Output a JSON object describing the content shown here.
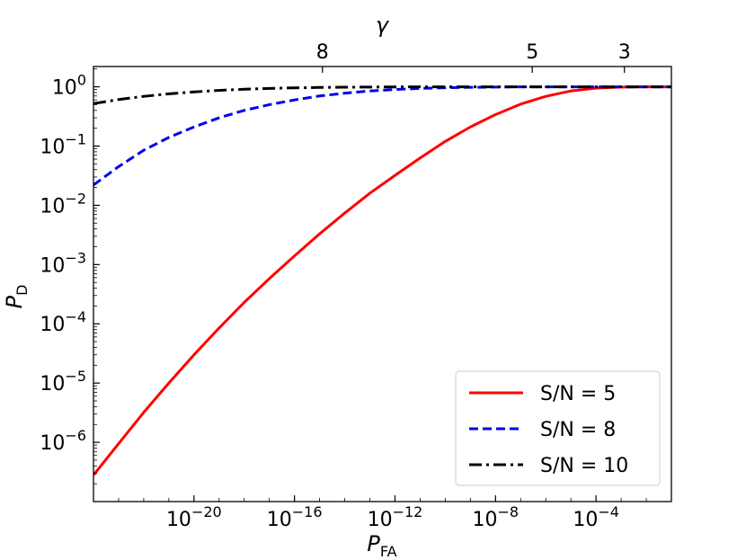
{
  "chart_data": {
    "type": "line",
    "title": "",
    "xlabel": "P_FA",
    "xlabel_main": "P",
    "xlabel_sub": "FA",
    "ylabel": "P_D",
    "ylabel_main": "P",
    "ylabel_sub": "D",
    "top_axis_label": "γ",
    "x_scale": "log",
    "y_scale": "log",
    "xlim": [
      1e-24,
      0.1
    ],
    "ylim": [
      1e-07,
      2.2
    ],
    "grid": false,
    "legend_position": "lower-right",
    "x_ticks": [
      {
        "base": "10",
        "exp": "−20",
        "value": 1e-20
      },
      {
        "base": "10",
        "exp": "−16",
        "value": 1e-16
      },
      {
        "base": "10",
        "exp": "−12",
        "value": 1e-12
      },
      {
        "base": "10",
        "exp": "−8",
        "value": 1e-08
      },
      {
        "base": "10",
        "exp": "−4",
        "value": 0.0001
      }
    ],
    "y_ticks": [
      {
        "base": "10",
        "exp": "0",
        "value": 1
      },
      {
        "base": "10",
        "exp": "−1",
        "value": 0.1
      },
      {
        "base": "10",
        "exp": "−2",
        "value": 0.01
      },
      {
        "base": "10",
        "exp": "−3",
        "value": 0.001
      },
      {
        "base": "10",
        "exp": "−4",
        "value": 0.0001
      },
      {
        "base": "10",
        "exp": "−5",
        "value": 1e-05
      },
      {
        "base": "10",
        "exp": "−6",
        "value": 1e-06
      }
    ],
    "top_ticks": [
      {
        "label": "8",
        "gamma": 8,
        "pfa": 1.3e-15
      },
      {
        "label": "5",
        "gamma": 5,
        "pfa": 2.9e-07
      },
      {
        "label": "3",
        "gamma": 3,
        "pfa": 0.00135
      }
    ],
    "series": [
      {
        "name": "S/N = 5",
        "color": "#ff0000",
        "dash": "solid",
        "x": [
          1e-24,
          1e-23,
          1e-22,
          1e-21,
          1e-20,
          1e-19,
          1e-18,
          1e-17,
          1e-16,
          1e-15,
          1e-14,
          1e-13,
          1e-12,
          1e-11,
          1e-10,
          1e-09,
          1e-08,
          1e-07,
          1e-06,
          1e-05,
          0.0001,
          0.001,
          0.01,
          0.1
        ],
        "y": [
          2.8e-07,
          9.5e-07,
          3.2e-06,
          1e-05,
          3e-05,
          8.5e-05,
          0.00023,
          0.00058,
          0.0014,
          0.0033,
          0.0074,
          0.016,
          0.032,
          0.063,
          0.12,
          0.21,
          0.34,
          0.51,
          0.69,
          0.85,
          0.95,
          0.99,
          1.0,
          1.0
        ]
      },
      {
        "name": "S/N = 8",
        "color": "#0000ee",
        "dash": "dashed",
        "x": [
          1e-24,
          1e-23,
          1e-22,
          1e-21,
          1e-20,
          1e-19,
          1e-18,
          1e-17,
          1e-16,
          1e-15,
          1e-14,
          1e-13,
          1e-12,
          1e-11,
          1e-10,
          1e-09,
          1e-08,
          1e-07,
          1e-06,
          1e-05,
          0.0001,
          0.001,
          0.01,
          0.1
        ],
        "y": [
          0.022,
          0.045,
          0.085,
          0.14,
          0.21,
          0.3,
          0.4,
          0.5,
          0.6,
          0.7,
          0.78,
          0.85,
          0.9,
          0.94,
          0.965,
          0.98,
          0.99,
          1.0,
          1.0,
          1.0,
          1.0,
          1.0,
          1.0,
          1.0
        ]
      },
      {
        "name": "S/N = 10",
        "color": "#000000",
        "dash": "dashdot",
        "x": [
          1e-24,
          1e-23,
          1e-22,
          1e-21,
          1e-20,
          1e-19,
          1e-18,
          1e-17,
          1e-16,
          1e-15,
          1e-14,
          1e-13,
          1e-12,
          1e-11,
          1e-10,
          1e-09,
          1e-08,
          1e-07,
          1e-06,
          1e-05,
          0.0001,
          0.001,
          0.01,
          0.1
        ],
        "y": [
          0.52,
          0.61,
          0.69,
          0.76,
          0.82,
          0.87,
          0.91,
          0.94,
          0.96,
          0.975,
          0.985,
          0.99,
          0.995,
          1.0,
          1.0,
          1.0,
          1.0,
          1.0,
          1.0,
          1.0,
          1.0,
          1.0,
          1.0,
          1.0
        ]
      }
    ]
  }
}
